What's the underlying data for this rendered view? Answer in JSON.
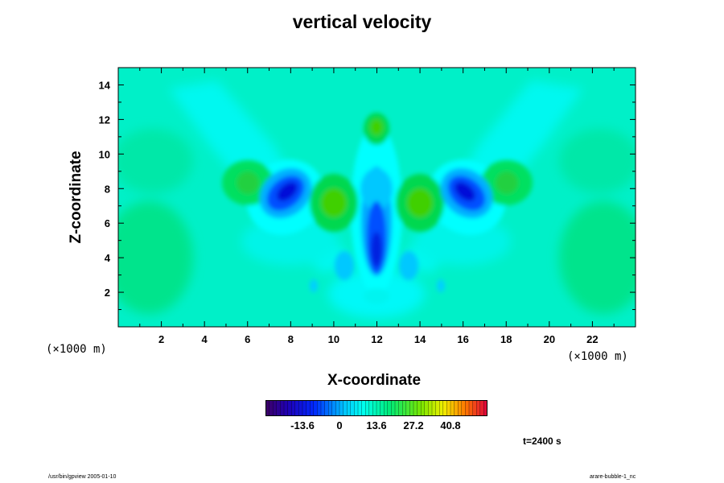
{
  "title": "vertical velocity",
  "chart_data": {
    "type": "heatmap",
    "title": "vertical velocity",
    "xlabel": "X-coordinate",
    "ylabel": "Z-coordinate",
    "x_unit": "(×1000 m)",
    "z_unit": "(×1000 m)",
    "xlim": [
      0,
      24
    ],
    "zlim": [
      0,
      15
    ],
    "x_ticks": [
      "2",
      "4",
      "6",
      "8",
      "10",
      "12",
      "14",
      "16",
      "18",
      "20",
      "22"
    ],
    "z_ticks": [
      "2",
      "4",
      "6",
      "8",
      "10",
      "12",
      "14"
    ],
    "colorbar": {
      "range": [
        -27.2,
        54.4
      ],
      "tick_labels": [
        "-13.6",
        "0",
        "13.6",
        "27.2",
        "40.8"
      ],
      "tick_values": [
        -13.6,
        0,
        13.6,
        27.2,
        40.8
      ]
    },
    "features": [
      {
        "x": 12,
        "z": 4.5,
        "sign": "negative"
      },
      {
        "x": 12,
        "z": 7,
        "sign": "negative"
      },
      {
        "x": 8,
        "z": 7.7,
        "sign": "negative"
      },
      {
        "x": 16,
        "z": 7.7,
        "sign": "negative"
      },
      {
        "x": 6,
        "z": 8.3,
        "sign": "positive"
      },
      {
        "x": 18,
        "z": 8.3,
        "sign": "positive"
      },
      {
        "x": 10,
        "z": 7.2,
        "sign": "positive"
      },
      {
        "x": 14,
        "z": 7.2,
        "sign": "positive"
      },
      {
        "x": 12,
        "z": 11.5,
        "sign": "positive"
      },
      {
        "x": 2,
        "z": 3.8,
        "sign": "positive"
      },
      {
        "x": 22,
        "z": 3.8,
        "sign": "positive"
      }
    ]
  },
  "time_label": "t=2400 s",
  "footer_left": "/usr/bin/gpview 2005-01-10",
  "footer_right": "arare-bubble-1_nc"
}
